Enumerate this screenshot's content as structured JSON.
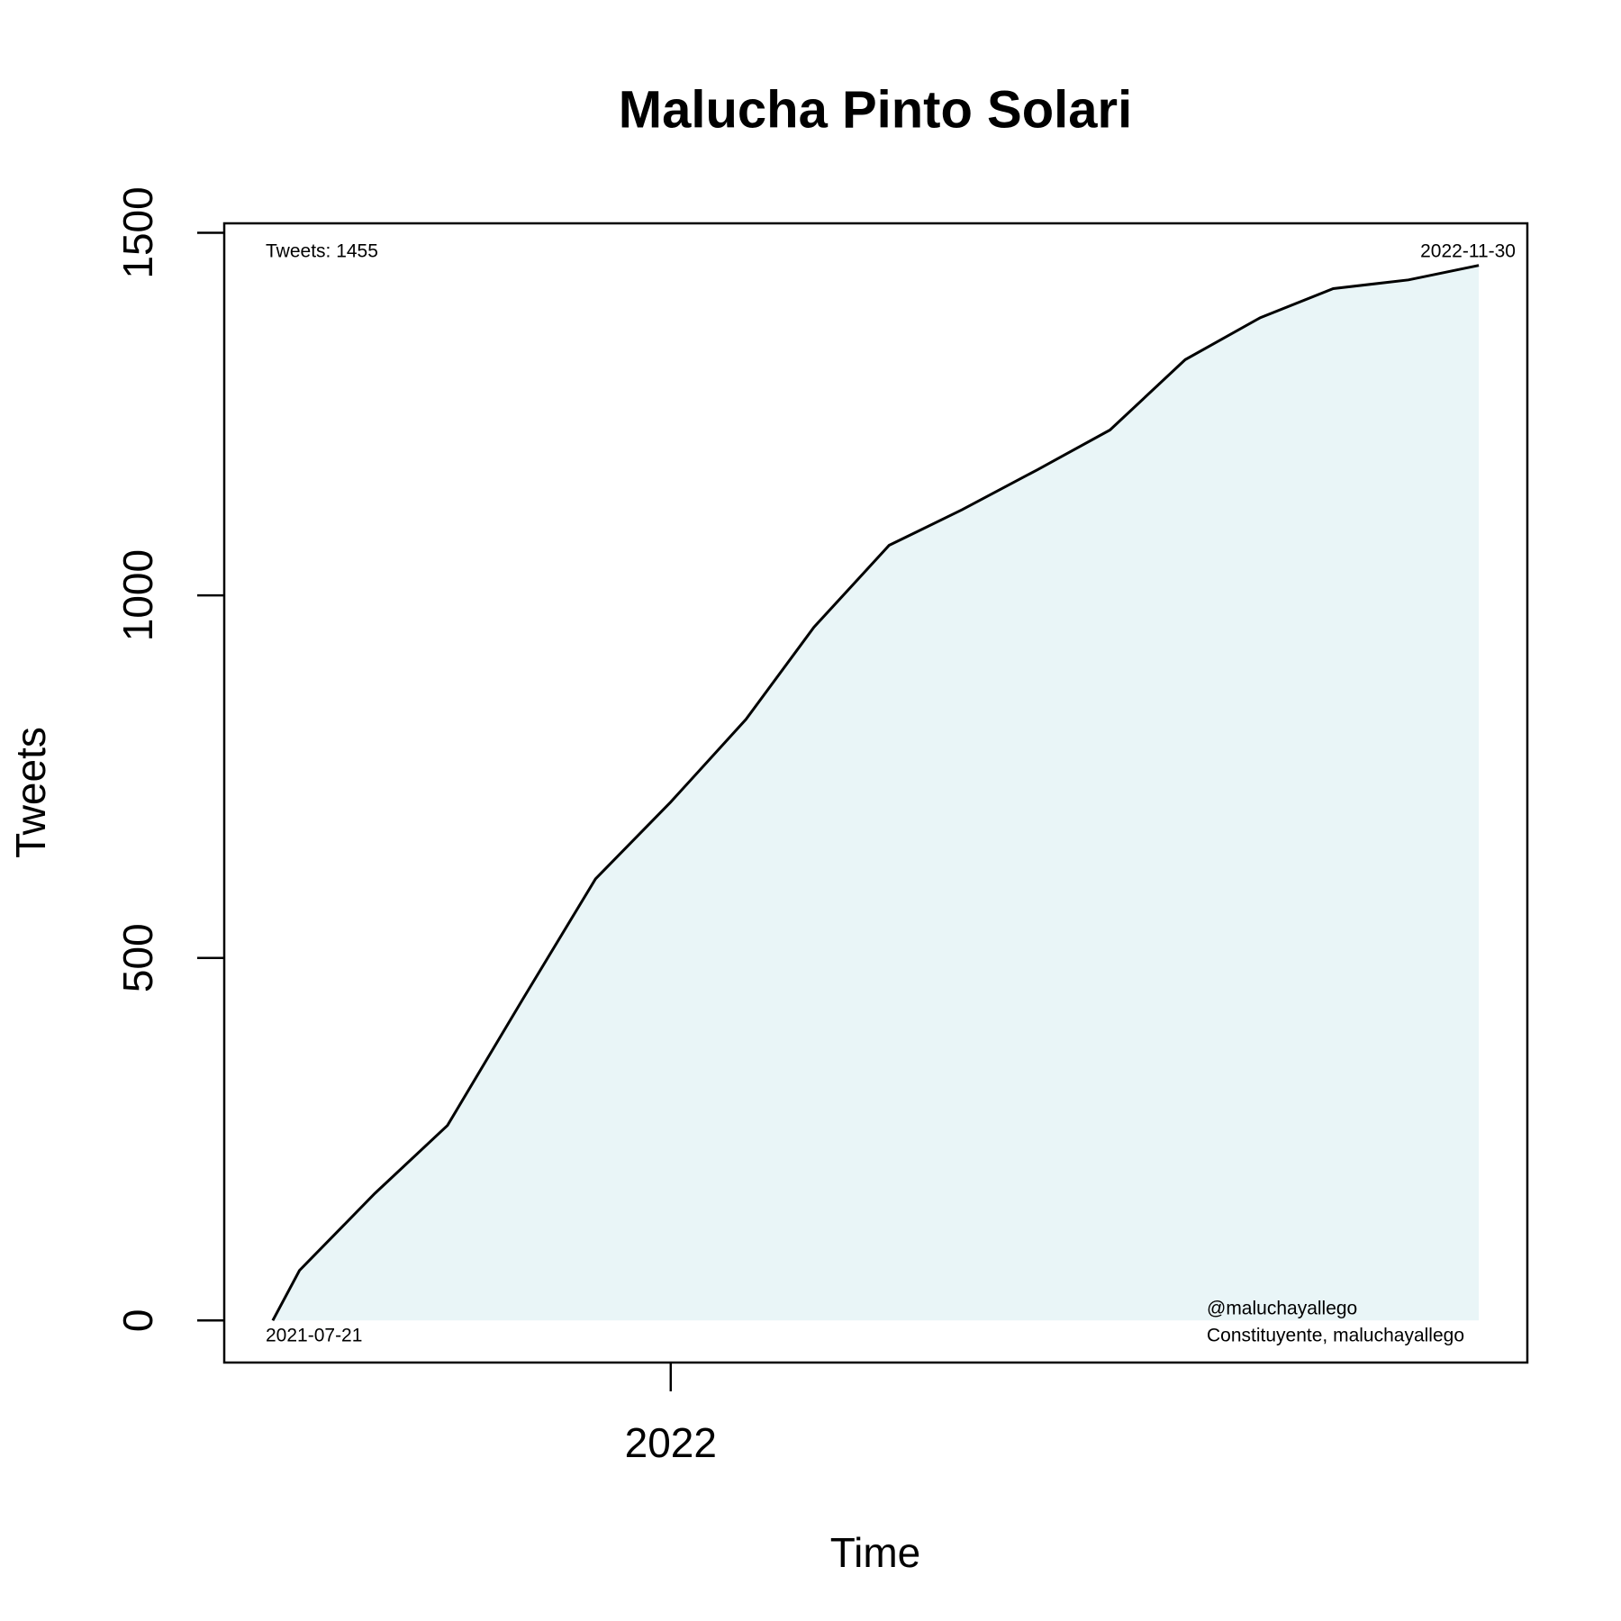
{
  "chart_data": {
    "type": "line",
    "title": "Malucha Pinto Solari",
    "x_label": "Time",
    "y_label": "Tweets",
    "x": [
      "2021-07-21",
      "2021-08-01",
      "2021-09-01",
      "2021-10-01",
      "2021-11-01",
      "2021-12-01",
      "2022-01-01",
      "2022-02-01",
      "2022-03-01",
      "2022-04-01",
      "2022-05-01",
      "2022-06-01",
      "2022-07-01",
      "2022-08-01",
      "2022-09-01",
      "2022-10-01",
      "2022-11-01",
      "2022-11-30"
    ],
    "series": [
      {
        "name": "Tweets",
        "color": "#000000",
        "fill": "#e9f5f7",
        "values": [
          0,
          69,
          175,
          269,
          443,
          609,
          715,
          829,
          956,
          1069,
          1118,
          1173,
          1228,
          1325,
          1383,
          1423,
          1435,
          1455
        ]
      }
    ],
    "xlim": [
      "2021-07-01",
      "2022-12-20"
    ],
    "xticks": [
      {
        "value": "2022-01-01",
        "label": "2022"
      }
    ],
    "ylim": [
      -58,
      1513
    ],
    "yticks": [
      0,
      500,
      1000,
      1500
    ],
    "annotations": [
      "Tweets: 1455",
      "2022-11-30",
      "2021-07-21",
      "@maluchayallego",
      "Constituyente, maluchayallego"
    ]
  }
}
